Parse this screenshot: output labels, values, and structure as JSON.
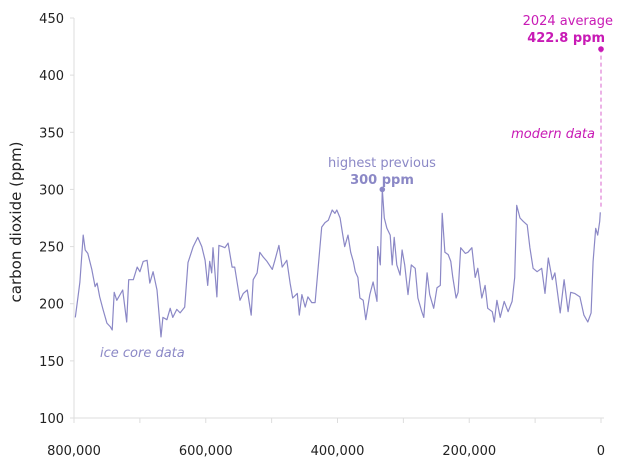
{
  "chart_data": {
    "type": "line",
    "title": "",
    "xlabel": "",
    "ylabel": "carbon dioxide (ppm)",
    "xlim": [
      800000,
      0
    ],
    "x_reversed": true,
    "ylim": [
      100,
      450
    ],
    "grid": false,
    "yticks": [
      100,
      150,
      200,
      250,
      300,
      350,
      400,
      450
    ],
    "ytick_labels": [
      "100",
      "150",
      "200",
      "250",
      "300",
      "350",
      "400",
      "450"
    ],
    "xticks_minor": [
      800000,
      700000,
      600000,
      500000,
      400000,
      300000,
      200000,
      100000,
      0
    ],
    "xticks": [
      800000,
      600000,
      400000,
      200000,
      0
    ],
    "xtick_labels": [
      "800,000",
      "600,000",
      "400,000",
      "200,000",
      "0"
    ],
    "colors": {
      "ice_core": "#8b88c6",
      "modern": "#c81ab5",
      "axis": "#dddddd"
    },
    "series": [
      {
        "name": "ice core data",
        "x": [
          798000,
          794000,
          791000,
          786000,
          783000,
          779000,
          773000,
          768000,
          765000,
          761000,
          756000,
          750000,
          745000,
          742000,
          739000,
          735000,
          726000,
          720000,
          717000,
          710000,
          704000,
          700000,
          695000,
          689000,
          685000,
          680000,
          674000,
          668000,
          665000,
          659000,
          654000,
          650000,
          644000,
          639000,
          632000,
          627000,
          619000,
          612000,
          606000,
          601000,
          597000,
          594000,
          591000,
          589000,
          583000,
          580000,
          575000,
          571000,
          566000,
          560000,
          556000,
          553000,
          548000,
          543000,
          537000,
          531000,
          528000,
          522000,
          518000,
          513000,
          507000,
          499000,
          495000,
          489000,
          484000,
          477000,
          472000,
          468000,
          461000,
          458000,
          454000,
          449000,
          445000,
          439000,
          434000,
          430000,
          424000,
          419000,
          414000,
          408000,
          404000,
          401000,
          396000,
          392000,
          389000,
          384000,
          380000,
          376000,
          373000,
          369000,
          366000,
          361000,
          357000,
          351000,
          346000,
          340000,
          339000,
          335000,
          332000,
          329000,
          325000,
          320000,
          317000,
          314000,
          310000,
          305000,
          302000,
          298000,
          293000,
          288000,
          282000,
          278000,
          272000,
          269000,
          264000,
          260000,
          254000,
          249000,
          244000,
          241000,
          237000,
          232000,
          228000,
          225000,
          220000,
          217000,
          213000,
          206000,
          202000,
          196000,
          191000,
          187000,
          181000,
          176000,
          172000,
          165000,
          162000,
          158000,
          153000,
          147000,
          141000,
          135000,
          131000,
          128000,
          123000,
          118000,
          112000,
          108000,
          103000,
          97000,
          90000,
          85000,
          80000,
          74000,
          70000,
          62000,
          56000,
          50000,
          46000,
          40000,
          32000,
          26000,
          20000,
          15000,
          12000,
          8000,
          5000,
          2000,
          1000
        ],
        "y": [
          188,
          206,
          219,
          260,
          247,
          244,
          230,
          215,
          218,
          206,
          195,
          183,
          180,
          177,
          210,
          203,
          212,
          184,
          221,
          221,
          232,
          228,
          237,
          238,
          218,
          228,
          212,
          171,
          188,
          186,
          196,
          188,
          195,
          192,
          197,
          236,
          250,
          258,
          250,
          238,
          216,
          237,
          227,
          249,
          206,
          251,
          250,
          249,
          253,
          232,
          232,
          221,
          203,
          209,
          212,
          190,
          221,
          227,
          245,
          241,
          237,
          230,
          238,
          251,
          232,
          238,
          218,
          205,
          209,
          190,
          208,
          197,
          206,
          201,
          201,
          227,
          267,
          271,
          273,
          282,
          279,
          282,
          275,
          260,
          250,
          260,
          245,
          237,
          228,
          223,
          205,
          203,
          186,
          208,
          219,
          202,
          250,
          234,
          300,
          275,
          266,
          260,
          234,
          258,
          234,
          225,
          247,
          234,
          208,
          234,
          231,
          205,
          193,
          188,
          227,
          208,
          196,
          214,
          216,
          279,
          245,
          243,
          237,
          223,
          205,
          210,
          249,
          244,
          245,
          249,
          223,
          231,
          205,
          216,
          196,
          193,
          184,
          203,
          188,
          202,
          193,
          202,
          223,
          286,
          275,
          272,
          269,
          249,
          231,
          228,
          231,
          209,
          240,
          221,
          227,
          192,
          221,
          193,
          210,
          209,
          206,
          190,
          184,
          192,
          237,
          266,
          260,
          272,
          280
        ]
      },
      {
        "name": "modern data",
        "x": [
          0,
          0
        ],
        "y": [
          285,
          422.8
        ]
      }
    ],
    "annotations": {
      "ice_core_label": "ice core data",
      "highest_previous": {
        "line1": "highest previous",
        "line2": "300 ppm",
        "x": 332000,
        "y": 300
      },
      "modern_label": "modern data",
      "latest": {
        "line1": "2024 average",
        "line2": "422.8 ppm",
        "x": 0,
        "y": 422.8
      }
    }
  }
}
